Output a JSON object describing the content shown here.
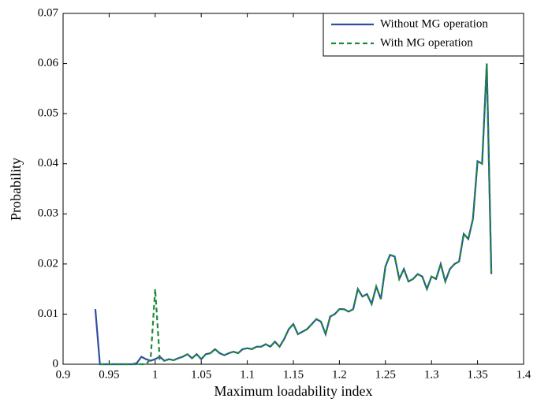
{
  "chart_data": {
    "type": "line",
    "xlabel": "Maximum loadability index",
    "ylabel": "Probability",
    "x": [
      0.935,
      0.94,
      0.945,
      0.95,
      0.955,
      0.96,
      0.965,
      0.97,
      0.975,
      0.98,
      0.985,
      0.99,
      0.995,
      1,
      1.005,
      1.01,
      1.015,
      1.02,
      1.025,
      1.03,
      1.035,
      1.04,
      1.045,
      1.05,
      1.055,
      1.06,
      1.065,
      1.07,
      1.075,
      1.08,
      1.085,
      1.09,
      1.095,
      1.1,
      1.105,
      1.11,
      1.115,
      1.12,
      1.125,
      1.13,
      1.135,
      1.14,
      1.145,
      1.15,
      1.155,
      1.16,
      1.165,
      1.17,
      1.175,
      1.18,
      1.185,
      1.19,
      1.195,
      1.2,
      1.205,
      1.21,
      1.215,
      1.22,
      1.225,
      1.23,
      1.235,
      1.24,
      1.245,
      1.25,
      1.255,
      1.26,
      1.265,
      1.27,
      1.275,
      1.28,
      1.285,
      1.29,
      1.295,
      1.3,
      1.305,
      1.31,
      1.315,
      1.32,
      1.325,
      1.33,
      1.335,
      1.34,
      1.345,
      1.35,
      1.355,
      1.36,
      1.365
    ],
    "series": [
      {
        "name": "Without MG operation",
        "color": "#2f4f9f",
        "dash": false,
        "values": [
          0.011,
          0,
          0,
          0,
          0,
          0,
          0,
          0,
          0,
          0.0002,
          0.0015,
          0.001,
          0.0007,
          0.001,
          0.0015,
          0.0007,
          0.001,
          0.0008,
          0.0012,
          0.0015,
          0.002,
          0.0012,
          0.002,
          0.001,
          0.002,
          0.0022,
          0.003,
          0.0022,
          0.0018,
          0.0022,
          0.0025,
          0.0022,
          0.003,
          0.0032,
          0.003,
          0.0035,
          0.0035,
          0.004,
          0.0035,
          0.0045,
          0.0035,
          0.005,
          0.007,
          0.008,
          0.006,
          0.0065,
          0.007,
          0.008,
          0.009,
          0.0085,
          0.006,
          0.0095,
          0.01,
          0.011,
          0.011,
          0.0105,
          0.011,
          0.015,
          0.0135,
          0.014,
          0.012,
          0.0155,
          0.013,
          0.0195,
          0.0218,
          0.0215,
          0.017,
          0.019,
          0.0165,
          0.017,
          0.018,
          0.0175,
          0.015,
          0.0175,
          0.017,
          0.02,
          0.0165,
          0.019,
          0.02,
          0.0205,
          0.026,
          0.025,
          0.029,
          0.0405,
          0.04,
          0.06,
          0.018
        ]
      },
      {
        "name": "With MG operation",
        "color": "#1e8a3c",
        "dash": true,
        "values": [
          null,
          0,
          0,
          0,
          0,
          0,
          0,
          0,
          0,
          0,
          0,
          0,
          0.001,
          0.015,
          0.001,
          0.0007,
          0.001,
          0.0008,
          0.0012,
          0.0015,
          0.002,
          0.0012,
          0.002,
          0.001,
          0.002,
          0.0022,
          0.003,
          0.0022,
          0.0018,
          0.0022,
          0.0025,
          0.0022,
          0.003,
          0.0032,
          0.003,
          0.0035,
          0.0035,
          0.004,
          0.0035,
          0.0045,
          0.0035,
          0.005,
          0.007,
          0.008,
          0.006,
          0.0065,
          0.007,
          0.008,
          0.009,
          0.0085,
          0.006,
          0.0095,
          0.01,
          0.011,
          0.011,
          0.0105,
          0.011,
          0.015,
          0.0135,
          0.014,
          0.012,
          0.0155,
          0.013,
          0.0195,
          0.0218,
          0.0215,
          0.017,
          0.019,
          0.0165,
          0.017,
          0.018,
          0.0175,
          0.015,
          0.0175,
          0.017,
          0.02,
          0.0165,
          0.019,
          0.02,
          0.0205,
          0.026,
          0.025,
          0.029,
          0.0405,
          0.04,
          0.06,
          0.018
        ]
      }
    ],
    "xlim": [
      0.9,
      1.4
    ],
    "xticks": [
      0.9,
      0.95,
      1,
      1.05,
      1.1,
      1.15,
      1.2,
      1.25,
      1.3,
      1.35,
      1.4
    ],
    "ylim": [
      0,
      0.07
    ],
    "yticks": [
      0,
      0.01,
      0.02,
      0.03,
      0.04,
      0.05,
      0.06,
      0.07
    ],
    "grid": false,
    "legend": "upper right"
  }
}
